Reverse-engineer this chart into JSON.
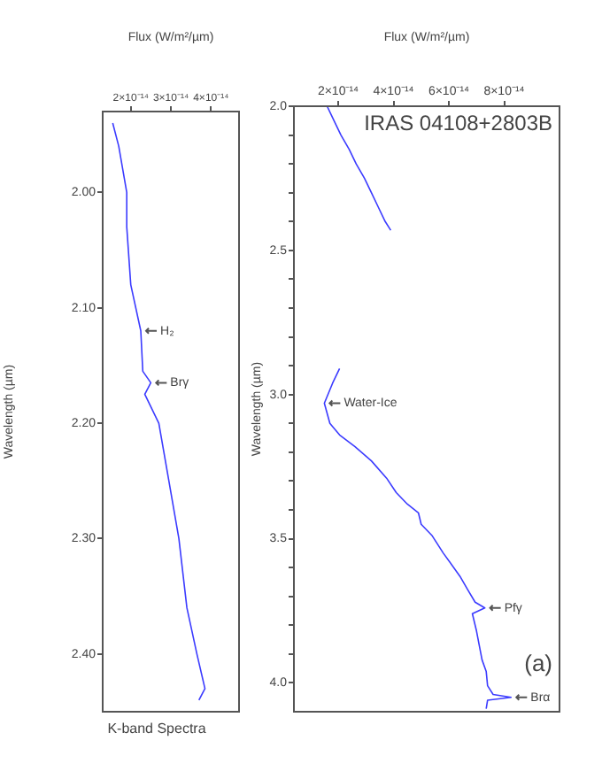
{
  "chart_data": [
    {
      "type": "line",
      "title": "IRAS 04108+2803B",
      "xlabel": "Flux (W/m²/µm)",
      "ylabel": "Wavelength (µm)",
      "series": [
        {
          "color": "#3b3bff",
          "x": [
            1.6e-14,
            1.85e-14,
            2.1e-14,
            2.4e-14,
            2.65e-14,
            2.95e-14,
            3.2e-14,
            3.45e-14,
            3.7e-14,
            3.9e-14
          ],
          "values": [
            2.0,
            2.05,
            2.1,
            2.15,
            2.2,
            2.25,
            2.3,
            2.35,
            2.4,
            2.43
          ]
        },
        {
          "color": "#3b3bff",
          "x": [
            2.05e-14,
            1.8e-14,
            1.5e-14,
            1.7e-14,
            2.05e-14,
            2.6e-14,
            3.2e-14,
            3.75e-14,
            4.1e-14,
            4.5e-14,
            4.9e-14,
            5e-14,
            5.4e-14,
            5.8e-14,
            6.4e-14,
            6.7e-14,
            6.95e-14,
            7.3e-14,
            6.85e-14,
            7e-14,
            7.1e-14,
            7.2e-14,
            7.35e-14,
            7.4e-14,
            7.6e-14,
            8.25e-14,
            7.4e-14,
            7.35e-14
          ],
          "values": [
            2.91,
            2.96,
            3.03,
            3.1,
            3.14,
            3.18,
            3.23,
            3.29,
            3.34,
            3.38,
            3.41,
            3.45,
            3.49,
            3.55,
            3.63,
            3.68,
            3.72,
            3.74,
            3.76,
            3.82,
            3.87,
            3.92,
            3.96,
            4.01,
            4.04,
            4.05,
            4.06,
            4.09
          ]
        }
      ],
      "xlim": [
        4e-15,
        1e-13
      ],
      "xticks": [
        {
          "value": 2e-14,
          "label": "2×10⁻¹⁴"
        },
        {
          "value": 4e-14,
          "label": "4×10⁻¹⁴"
        },
        {
          "value": 6e-14,
          "label": "6×10⁻¹⁴"
        },
        {
          "value": 8e-14,
          "label": "8×10⁻¹⁴"
        }
      ],
      "ylim": [
        4.1,
        2.0
      ],
      "yticks": [
        {
          "value": 2.0,
          "label": "2.0"
        },
        {
          "value": 2.1,
          "label": null
        },
        {
          "value": 2.2,
          "label": null
        },
        {
          "value": 2.3,
          "label": null
        },
        {
          "value": 2.4,
          "label": null
        },
        2.5,
        {
          "value": 2.6,
          "label": null
        },
        {
          "value": 2.7,
          "label": null
        },
        {
          "value": 2.8,
          "label": null
        },
        {
          "value": 2.9,
          "label": null
        },
        {
          "value": 3.0,
          "label": "3.0"
        },
        {
          "value": 3.1,
          "label": null
        },
        {
          "value": 3.2,
          "label": null
        },
        {
          "value": 3.3,
          "label": null
        },
        {
          "value": 3.4,
          "label": null
        },
        3.5,
        {
          "value": 3.6,
          "label": null
        },
        {
          "value": 3.7,
          "label": null
        },
        {
          "value": 3.8,
          "label": null
        },
        {
          "value": 3.9,
          "label": null
        },
        {
          "value": 4.0,
          "label": "4.0"
        }
      ],
      "grid": false,
      "legend": false,
      "marker": "none",
      "line_style": "solid",
      "annotations": [
        "(a)",
        {
          "text": "Water-Ice",
          "x": 1.5e-14,
          "y": 3.03
        },
        {
          "text": "Pfγ",
          "x": 7.3e-14,
          "y": 3.74
        },
        {
          "text": "Brα",
          "x": 8.25e-14,
          "y": 4.05
        }
      ]
    },
    {
      "type": "line",
      "title": "K-band Spectra",
      "xlabel": "Flux (W/m²/µm)",
      "ylabel": "Wavelength (µm)",
      "series": [
        {
          "color": "#3b3bff",
          "x": [
            1.55e-14,
            1.7e-14,
            1.9e-14,
            1.9e-14,
            2e-14,
            2.25e-14,
            2.3e-14,
            2.5e-14,
            2.35e-14,
            2.7e-14,
            2.95e-14,
            3.2e-14,
            3.4e-14,
            3.65e-14,
            3.85e-14,
            3.7e-14
          ],
          "values": [
            1.94,
            1.96,
            2.0,
            2.03,
            2.08,
            2.12,
            2.155,
            2.165,
            2.175,
            2.2,
            2.25,
            2.3,
            2.36,
            2.4,
            2.43,
            2.44
          ]
        }
      ],
      "xlim": [
        1.3e-14,
        4.7e-14
      ],
      "xticks": [
        {
          "value": 2e-14,
          "label": "2×10⁻¹⁴"
        },
        {
          "value": 3e-14,
          "label": "3×10⁻¹⁴"
        },
        {
          "value": 4e-14,
          "label": "4×10⁻¹⁴"
        }
      ],
      "ylim": [
        2.45,
        1.93
      ],
      "yticks": [
        {
          "value": 2.0,
          "label": "2.00"
        },
        {
          "value": 2.1,
          "label": "2.10"
        },
        {
          "value": 2.2,
          "label": "2.20"
        },
        {
          "value": 2.3,
          "label": "2.30"
        },
        {
          "value": 2.4,
          "label": "2.40"
        }
      ],
      "grid": false,
      "legend": false,
      "marker": "none",
      "line_style": "solid",
      "annotations": [
        {
          "text": "H₂",
          "x": 2.25e-14,
          "y": 2.12
        },
        {
          "text": "Brγ",
          "x": 2.5e-14,
          "y": 2.165
        }
      ]
    }
  ]
}
